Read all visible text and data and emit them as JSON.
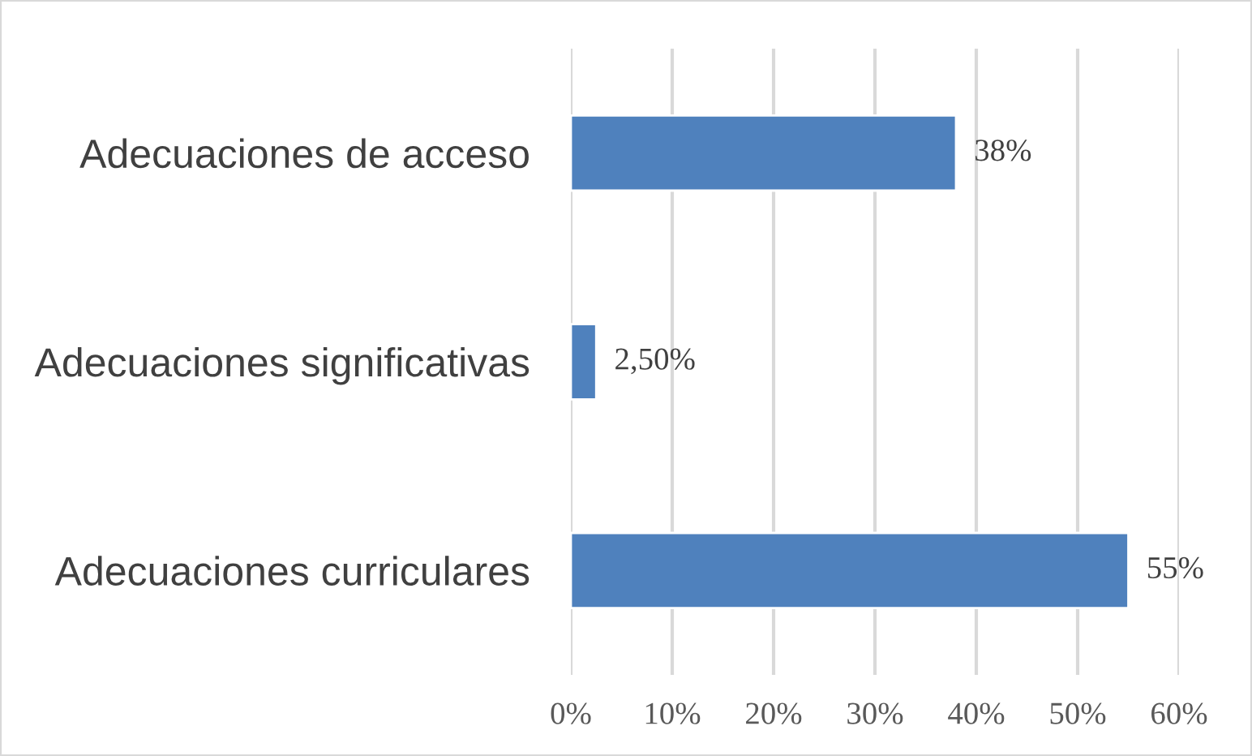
{
  "chart_data": {
    "type": "bar",
    "orientation": "horizontal",
    "categories": [
      "Adecuaciones de acceso",
      "Adecuaciones significativas",
      "Adecuaciones curriculares"
    ],
    "values": [
      38,
      2.5,
      55
    ],
    "color": "#4f81bd",
    "value_labels": [
      "38%",
      "2,50%",
      "55%"
    ],
    "xlim": [
      0,
      60
    ],
    "xticks": [
      {
        "value": 0,
        "label": "0%"
      },
      {
        "value": 10,
        "label": "10%"
      },
      {
        "value": 20,
        "label": "20%"
      },
      {
        "value": 30,
        "label": "30%"
      },
      {
        "value": 40,
        "label": "40%"
      },
      {
        "value": 50,
        "label": "50%"
      },
      {
        "value": 60,
        "label": "60%"
      }
    ],
    "grid": "x"
  }
}
